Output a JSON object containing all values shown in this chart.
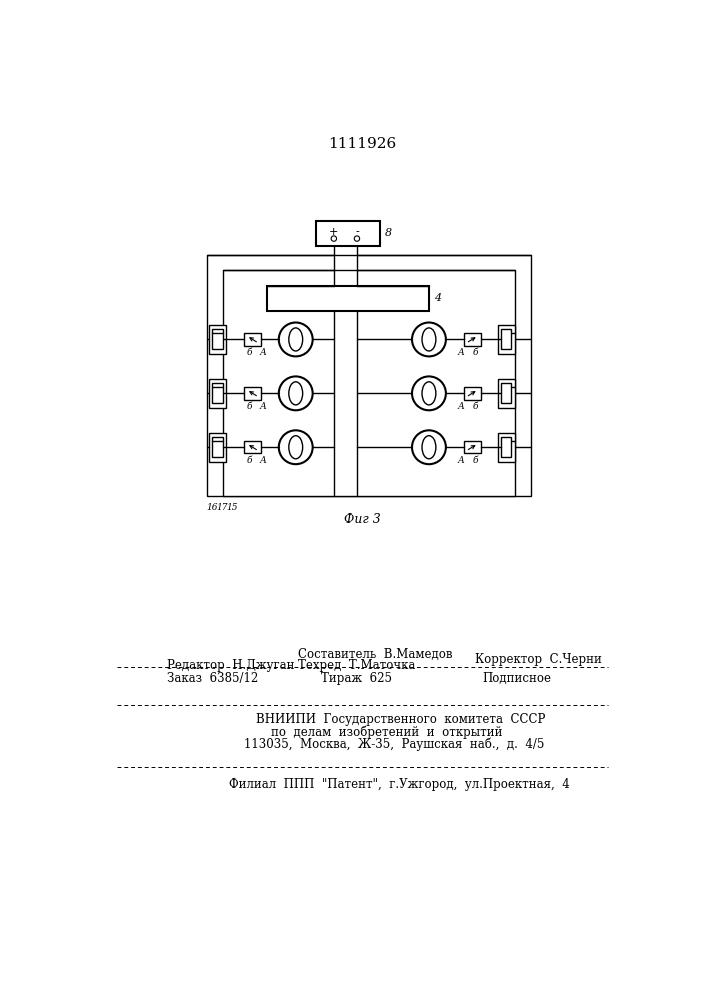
{
  "patent_number": "1111926",
  "fig_label": "Фиг 3",
  "battery_label": "8",
  "controller_label": "4",
  "bottom_labels": [
    "16",
    "17",
    "15"
  ],
  "background_color": "#ffffff",
  "line_color": "#000000",
  "font_size_patent": 11,
  "font_size_labels": 8,
  "font_size_fig": 9,
  "footer_sestavitel": "Составитель  В.Мамедов",
  "footer_tehred": "Техред  Т.Маточка",
  "footer_korrektor": "Корректор  С.Черни",
  "footer_redaktor": "Редактор  Н.Джуган",
  "footer_order": "Заказ  6385/12",
  "footer_tirazh": "Тираж  625",
  "footer_podpisnoe": "Подписное",
  "footer_vnipi": "ВНИИПИ  Государственного  комитета  СССР",
  "footer_po_delam": "по  делам  изобретений  и  открытий",
  "footer_address": "113035,  Москва,  Ж-35,  Раушская  наб.,  д.  4/5",
  "footer_filial": "Филиал  ППП  \"Патент\",  г.Ужгород,  ул.Проектная,  4"
}
